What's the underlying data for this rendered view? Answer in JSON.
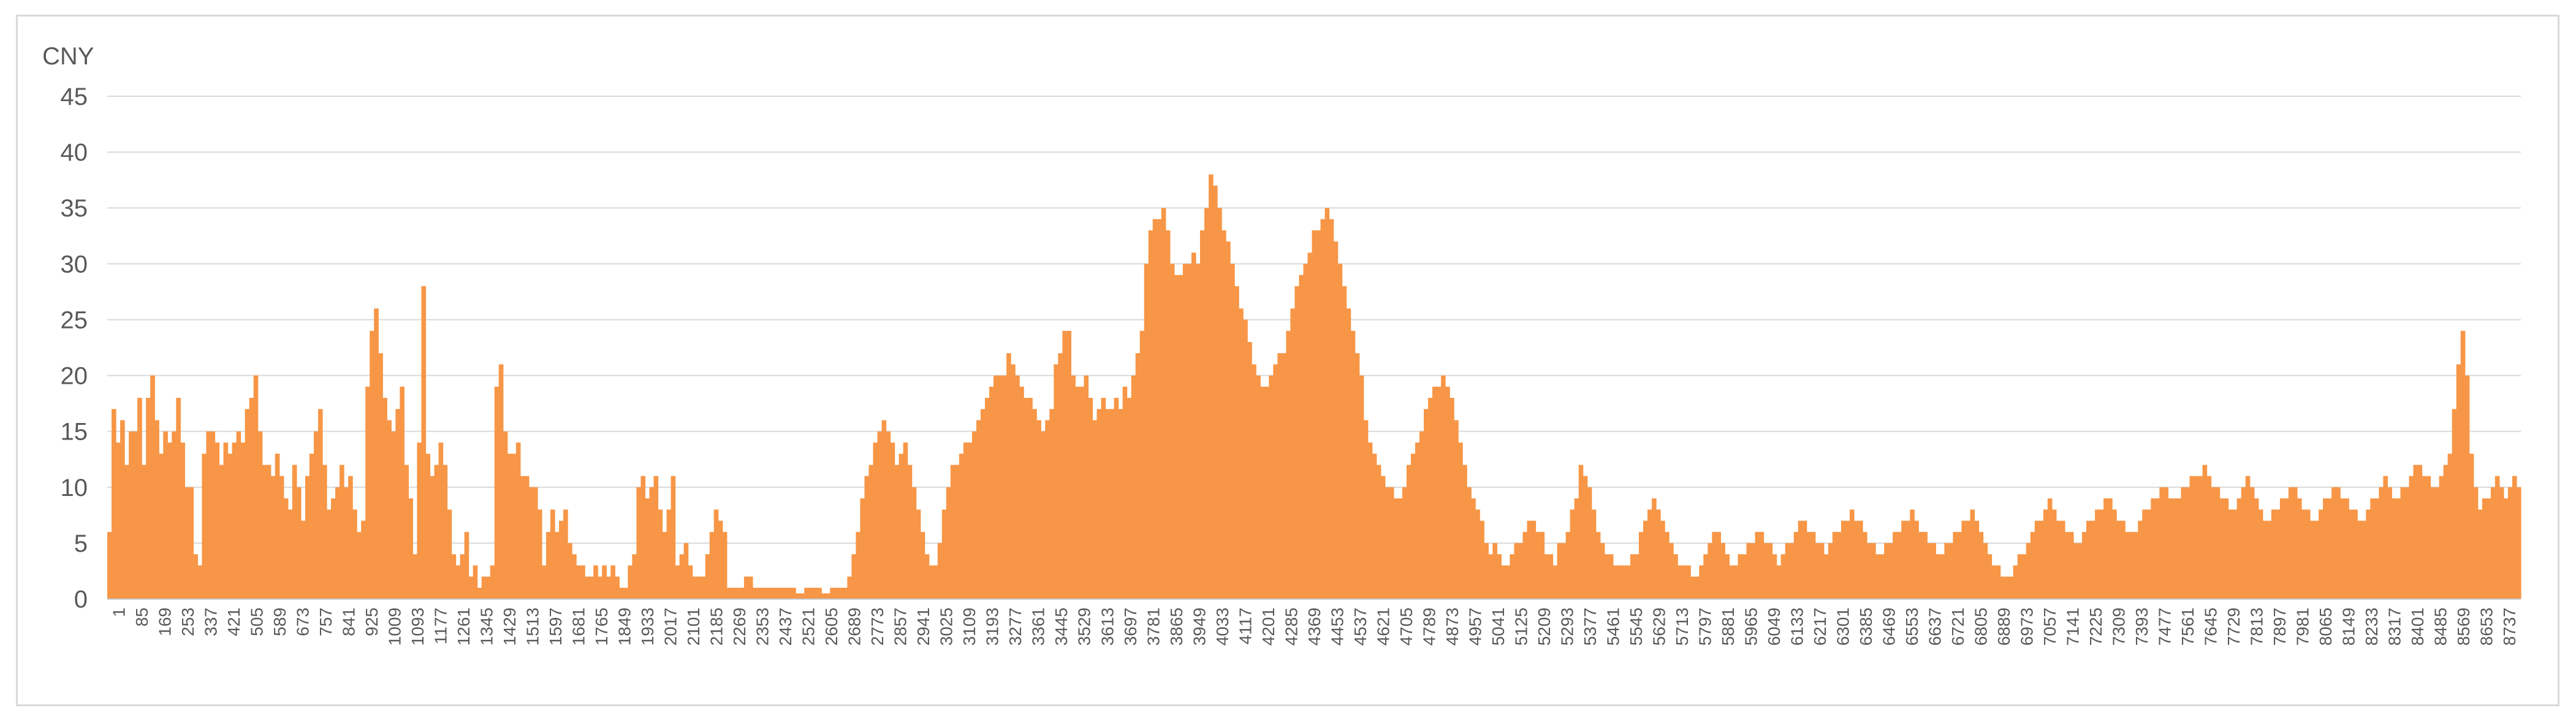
{
  "chart_data": {
    "type": "bar",
    "unit_label": "CNY",
    "color": "#f79646",
    "grid": true,
    "legend": "none",
    "ylim": [
      0,
      45
    ],
    "y_ticks": [
      "0",
      "5",
      "10",
      "15",
      "20",
      "25",
      "30",
      "35",
      "40",
      "45"
    ],
    "x_tick_labels": [
      "1",
      "85",
      "169",
      "253",
      "337",
      "421",
      "505",
      "589",
      "673",
      "757",
      "841",
      "925",
      "1009",
      "1093",
      "1177",
      "1261",
      "1345",
      "1429",
      "1513",
      "1597",
      "1681",
      "1765",
      "1849",
      "1933",
      "2017",
      "2101",
      "2185",
      "2269",
      "2353",
      "2437",
      "2521",
      "2605",
      "2689",
      "2773",
      "2857",
      "2941",
      "3025",
      "3109",
      "3193",
      "3277",
      "3361",
      "3445",
      "3529",
      "3613",
      "3697",
      "3781",
      "3865",
      "3949",
      "4033",
      "4117",
      "4201",
      "4285",
      "4369",
      "4453",
      "4537",
      "4621",
      "4705",
      "4789",
      "4873",
      "4957",
      "5041",
      "5125",
      "5209",
      "5293",
      "5377",
      "5461",
      "5545",
      "5629",
      "5713",
      "5797",
      "5881",
      "5965",
      "6049",
      "6133",
      "6217",
      "6301",
      "6385",
      "6469",
      "6553",
      "6637",
      "6721",
      "6805",
      "6889",
      "6973",
      "7057",
      "7141",
      "7225",
      "7309",
      "7393",
      "7477",
      "7561",
      "7645",
      "7729",
      "7813",
      "7897",
      "7981",
      "8065",
      "8149",
      "8233",
      "8317",
      "8401",
      "8485",
      "8569",
      "8653",
      "8737"
    ],
    "x_start": 1,
    "x_step": 42,
    "values": [
      6,
      17,
      14,
      16,
      12,
      15,
      15,
      18,
      12,
      18,
      20,
      16,
      13,
      15,
      14,
      15,
      18,
      14,
      10,
      10,
      4,
      3,
      13,
      15,
      15,
      14,
      12,
      14,
      13,
      14,
      15,
      14,
      17,
      18,
      20,
      15,
      12,
      12,
      11,
      13,
      11,
      9,
      8,
      12,
      10,
      7,
      11,
      13,
      15,
      17,
      12,
      8,
      9,
      10,
      12,
      10,
      11,
      8,
      6,
      7,
      19,
      24,
      26,
      22,
      18,
      16,
      15,
      17,
      19,
      12,
      9,
      4,
      14,
      28,
      13,
      11,
      12,
      14,
      12,
      8,
      4,
      3,
      4,
      6,
      2,
      3,
      1,
      2,
      2,
      3,
      19,
      21,
      15,
      13,
      13,
      14,
      11,
      11,
      10,
      10,
      8,
      3,
      6,
      8,
      6,
      7,
      8,
      5,
      4,
      3,
      3,
      2,
      2,
      3,
      2,
      3,
      2,
      3,
      2,
      1,
      1,
      3,
      4,
      10,
      11,
      9,
      10,
      11,
      8,
      6,
      8,
      11,
      3,
      4,
      5,
      3,
      2,
      2,
      2,
      4,
      6,
      8,
      7,
      6,
      1,
      1,
      1,
      1,
      2,
      2,
      1,
      1,
      1,
      1,
      1,
      1,
      1,
      1,
      1,
      1,
      0.5,
      0.5,
      1,
      1,
      1,
      1,
      0.5,
      0.5,
      1,
      1,
      1,
      1,
      2,
      4,
      6,
      9,
      11,
      12,
      14,
      15,
      16,
      15,
      14,
      12,
      13,
      14,
      12,
      10,
      8,
      6,
      4,
      3,
      3,
      5,
      8,
      10,
      12,
      12,
      13,
      14,
      14,
      15,
      16,
      17,
      18,
      19,
      20,
      20,
      20,
      22,
      21,
      20,
      19,
      18,
      18,
      17,
      16,
      15,
      16,
      17,
      21,
      22,
      24,
      24,
      20,
      19,
      19,
      20,
      18,
      16,
      17,
      18,
      17,
      17,
      18,
      17,
      19,
      18,
      20,
      22,
      24,
      30,
      33,
      34,
      34,
      35,
      33,
      30,
      29,
      29,
      30,
      30,
      31,
      30,
      33,
      35,
      38,
      37,
      35,
      33,
      32,
      30,
      28,
      26,
      25,
      23,
      21,
      20,
      19,
      19,
      20,
      21,
      22,
      22,
      24,
      26,
      28,
      29,
      30,
      31,
      33,
      33,
      34,
      35,
      34,
      32,
      30,
      28,
      26,
      24,
      22,
      20,
      16,
      14,
      13,
      12,
      11,
      10,
      10,
      9,
      9,
      10,
      12,
      13,
      14,
      15,
      17,
      18,
      19,
      19,
      20,
      19,
      18,
      16,
      14,
      12,
      10,
      9,
      8,
      7,
      5,
      4,
      5,
      4,
      3,
      3,
      4,
      5,
      5,
      6,
      7,
      7,
      6,
      6,
      4,
      4,
      3,
      5,
      5,
      6,
      8,
      9,
      12,
      11,
      10,
      8,
      6,
      5,
      4,
      4,
      3,
      3,
      3,
      3,
      4,
      4,
      6,
      7,
      8,
      9,
      8,
      7,
      6,
      5,
      4,
      3,
      3,
      3,
      2,
      2,
      3,
      4,
      5,
      6,
      6,
      5,
      4,
      3,
      3,
      4,
      4,
      5,
      5,
      6,
      6,
      5,
      5,
      4,
      3,
      4,
      5,
      5,
      6,
      7,
      7,
      6,
      6,
      5,
      5,
      4,
      5,
      6,
      6,
      7,
      7,
      8,
      7,
      7,
      6,
      5,
      5,
      4,
      4,
      5,
      5,
      6,
      6,
      7,
      7,
      8,
      7,
      6,
      6,
      5,
      5,
      4,
      4,
      5,
      5,
      6,
      6,
      7,
      7,
      8,
      7,
      6,
      5,
      4,
      3,
      3,
      2,
      2,
      2,
      3,
      4,
      4,
      5,
      6,
      7,
      7,
      8,
      9,
      8,
      7,
      7,
      6,
      6,
      5,
      5,
      6,
      7,
      7,
      8,
      8,
      9,
      9,
      8,
      7,
      7,
      6,
      6,
      6,
      7,
      8,
      8,
      9,
      9,
      10,
      10,
      9,
      9,
      9,
      10,
      10,
      11,
      11,
      11,
      12,
      11,
      10,
      10,
      9,
      9,
      8,
      8,
      9,
      10,
      11,
      10,
      9,
      8,
      7,
      7,
      8,
      8,
      9,
      9,
      10,
      10,
      9,
      8,
      8,
      7,
      7,
      8,
      9,
      9,
      10,
      10,
      9,
      9,
      8,
      8,
      7,
      7,
      8,
      9,
      9,
      10,
      11,
      10,
      9,
      9,
      10,
      10,
      11,
      12,
      12,
      11,
      11,
      10,
      10,
      11,
      12,
      13,
      17,
      21,
      24,
      20,
      13,
      10,
      8,
      9,
      9,
      10,
      11,
      10,
      9,
      10,
      11,
      10
    ]
  }
}
